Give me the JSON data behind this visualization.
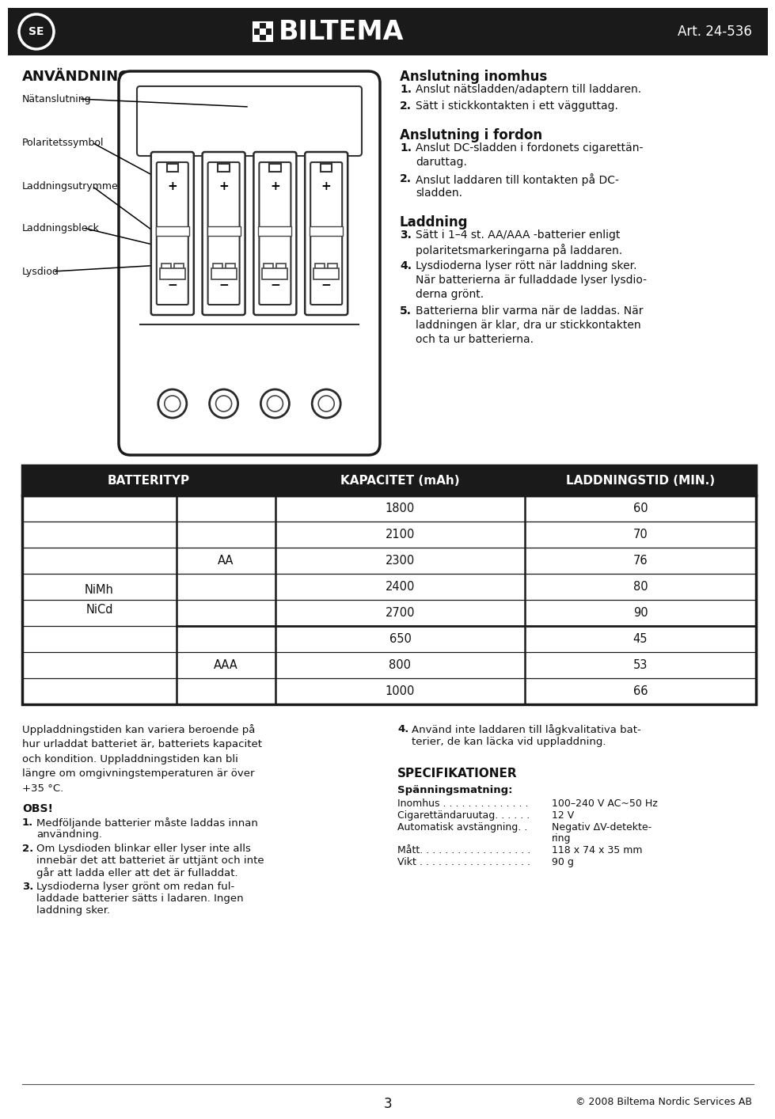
{
  "bg_color": "#ffffff",
  "header_bg": "#1a1a1a",
  "header_text_color": "#ffffff",
  "body_text_color": "#111111",
  "table_border_color": "#1a1a1a",
  "page_width": 9.6,
  "page_height": 13.82,
  "header_art": "Art. 24-536",
  "section_anvandning": "ANVÄNDNING",
  "label_names": [
    "Nätanslutning",
    "Polaritetssymbol",
    "Laddningsutrymme",
    "Laddningsbleck",
    "Lysdiod"
  ],
  "section_anslutning_inomhus": "Anslutning inomhus",
  "anslutning_inomhus_lines": [
    [
      "1.",
      "Anslut nätsladden/adaptern till laddaren."
    ],
    [
      "2.",
      "Sätt i stickkontakten i ett vägguttag."
    ]
  ],
  "section_anslutning_fordon": "Anslutning i fordon",
  "anslutning_fordon_lines": [
    [
      "1.",
      "Anslut DC-sladden i fordonets cigarettän-\ndaruttag."
    ],
    [
      "2.",
      "Anslut laddaren till kontakten på DC-\nsladden."
    ]
  ],
  "section_laddning": "Laddning",
  "laddning_lines": [
    [
      "3.",
      "Sätt i 1–4 st. AA/AAA -batterier enligt\npolaritetsmarkeringarna på laddaren."
    ],
    [
      "4.",
      "Lysdioderna lyser rött när laddning sker.\nNär batterierna är fulladdade lyser lysdio-\nderna grönt."
    ],
    [
      "5.",
      "Batterierna blir varma när de laddas. När\nladdningen är klar, dra ur stickkontakten\noch ta ur batterierna."
    ]
  ],
  "table_headers": [
    "BATTERITYP",
    "KAPACITET (mAh)",
    "LADDNINGSTID (MIN.)"
  ],
  "footer_left_para": "Uppladdningstiden kan variera beroende på\nhur urladdat batteriet är, batteriets kapacitet\noch kondition. Uppladdningstiden kan bli\nlängre om omgivningstemperaturen är över\n+35 °C.",
  "footer_obs_title": "OBS!",
  "footer_obs_lines": [
    [
      "1.",
      "Medföljande batterier måste laddas innan\nanvändning."
    ],
    [
      "2.",
      "Om Lysdioden blinkar eller lyser inte alls\ninnebär det att batteriet är uttjänt och inte\ngår att ladda eller att det är fulladdat."
    ],
    [
      "3.",
      "Lysdioderna lyser grönt om redan ful-\nladdade batterier sätts i ladaren. Ingen\nladdning sker."
    ]
  ],
  "footer_right_item4": [
    "4.",
    "Använd inte laddaren till lågkvalitativa bat-\nterier, de kan läcka vid uppladdning."
  ],
  "footer_spec_title": "SPECIFIKATIONER",
  "footer_spec_subtitle": "Spänningsmatning:",
  "footer_spec_rows": [
    [
      "Inomhus . . . . . . . . . . . . . .",
      "100–240 V AC~50 Hz"
    ],
    [
      "Cigarettändaruutag. . . . . .",
      "12 V"
    ],
    [
      "Automatisk avstängning. .",
      "Negativ ΔV-detekte-\nring"
    ],
    [
      "Mått. . . . . . . . . . . . . . . . . .",
      "118 x 74 x 35 mm"
    ],
    [
      "Vikt . . . . . . . . . . . . . . . . . .",
      "90 g"
    ]
  ],
  "page_number": "3",
  "footer_copyright": "© 2008 Biltema Nordic Services AB"
}
